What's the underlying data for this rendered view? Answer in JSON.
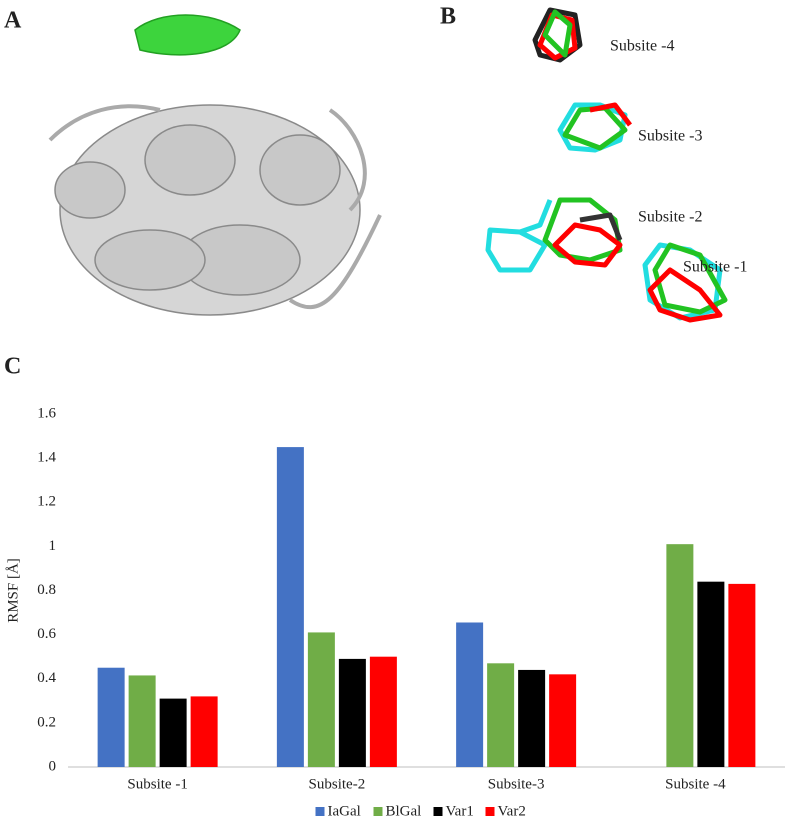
{
  "panel_labels": [
    "A",
    "B",
    "C"
  ],
  "structure_labels": [
    "Subsite -4",
    "Subsite -3",
    "Subsite -2",
    "Subsite -1"
  ],
  "chart_data": {
    "type": "bar",
    "y_label": "RMSF [Å]",
    "categories": [
      "Subsite -1",
      "Subsite-2",
      "Subsite-3",
      "Subsite -4"
    ],
    "series": [
      {
        "name": "IaGal",
        "color": "#4472c4",
        "values": [
          0.45,
          1.45,
          0.655,
          null
        ]
      },
      {
        "name": "BlGal",
        "color": "#70ad47",
        "values": [
          0.415,
          0.61,
          0.47,
          1.01
        ]
      },
      {
        "name": "Var1",
        "color": "#000000",
        "values": [
          0.31,
          0.49,
          0.44,
          0.84
        ]
      },
      {
        "name": "Var2",
        "color": "#ff0000",
        "values": [
          0.32,
          0.5,
          0.42,
          0.83
        ]
      }
    ],
    "ylim": [
      0,
      1.6
    ],
    "yticks": [
      0,
      0.2,
      0.4,
      0.6,
      0.8,
      1,
      1.2,
      1.4,
      1.6
    ],
    "grid": false,
    "legend": "bottom"
  }
}
